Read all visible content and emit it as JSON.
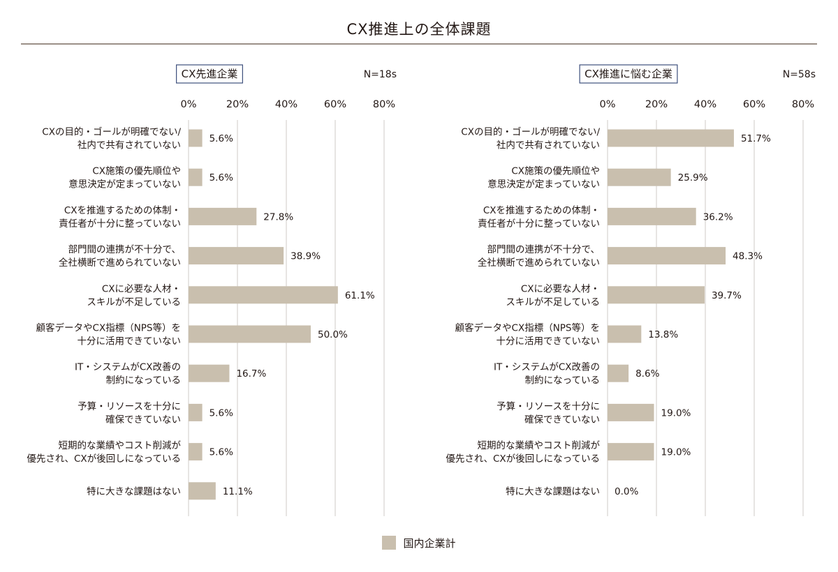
{
  "title": "CX推進上の全体課題",
  "chart_data": [
    {
      "type": "bar",
      "orientation": "horizontal",
      "panel_title": "CX先進企業",
      "n_label": "N=18s",
      "xlim": [
        0,
        80
      ],
      "ticks": [
        "0%",
        "20%",
        "40%",
        "60%",
        "80%"
      ],
      "tick_values": [
        0,
        20,
        40,
        60,
        80
      ],
      "categories": [
        [
          "CXの目的・ゴールが明確でない/",
          "社内で共有されていない"
        ],
        [
          "CX施策の優先順位や",
          "意思決定が定まっていない"
        ],
        [
          "CXを推進するための体制・",
          "責任者が十分に整っていない"
        ],
        [
          "部門間の連携が不十分で、",
          "全社横断で進められていない"
        ],
        [
          "CXに必要な人材・",
          "スキルが不足している"
        ],
        [
          "顧客データやCX指標（NPS等）を",
          "十分に活用できていない"
        ],
        [
          "IT・システムがCX改善の",
          "制約になっている"
        ],
        [
          "予算・リソースを十分に",
          "確保できていない"
        ],
        [
          "短期的な業績やコスト削減が",
          "優先され、CXが後回しになっている"
        ],
        [
          "特に大きな課題はない"
        ]
      ],
      "values": [
        5.6,
        5.6,
        27.8,
        38.9,
        61.1,
        50.0,
        16.7,
        5.6,
        5.6,
        11.1
      ],
      "value_labels": [
        "5.6%",
        "5.6%",
        "27.8%",
        "38.9%",
        "61.1%",
        "50.0%",
        "16.7%",
        "5.6%",
        "5.6%",
        "11.1%"
      ],
      "series": [
        {
          "name": "国内企業計"
        }
      ],
      "grid": true
    },
    {
      "type": "bar",
      "orientation": "horizontal",
      "panel_title": "CX推進に悩む企業",
      "n_label": "N=58s",
      "xlim": [
        0,
        80
      ],
      "ticks": [
        "0%",
        "20%",
        "40%",
        "60%",
        "80%"
      ],
      "tick_values": [
        0,
        20,
        40,
        60,
        80
      ],
      "categories": [
        [
          "CXの目的・ゴールが明確でない/",
          "社内で共有されていない"
        ],
        [
          "CX施策の優先順位や",
          "意思決定が定まっていない"
        ],
        [
          "CXを推進するための体制・",
          "責任者が十分に整っていない"
        ],
        [
          "部門間の連携が不十分で、",
          "全社横断で進められていない"
        ],
        [
          "CXに必要な人材・",
          "スキルが不足している"
        ],
        [
          "顧客データやCX指標（NPS等）を",
          "十分に活用できていない"
        ],
        [
          "IT・システムがCX改善の",
          "制約になっている"
        ],
        [
          "予算・リソースを十分に",
          "確保できていない"
        ],
        [
          "短期的な業績やコスト削減が",
          "優先され、CXが後回しになっている"
        ],
        [
          "特に大きな課題はない"
        ]
      ],
      "values": [
        51.7,
        25.9,
        36.2,
        48.3,
        39.7,
        13.8,
        8.6,
        19.0,
        19.0,
        0.0
      ],
      "value_labels": [
        "51.7%",
        "25.9%",
        "36.2%",
        "48.3%",
        "39.7%",
        "13.8%",
        "8.6%",
        "19.0%",
        "19.0%",
        "0.0%"
      ],
      "series": [
        {
          "name": "国内企業計"
        }
      ],
      "grid": true
    }
  ],
  "legend": {
    "label": "国内企業計",
    "placement": "bottom-center"
  },
  "colors": {
    "bar": "#c9bfae",
    "grid": "#cfcbc7",
    "text": "#231815",
    "panel_title_border": "#3d4f7c",
    "rule": "#9b9088"
  }
}
